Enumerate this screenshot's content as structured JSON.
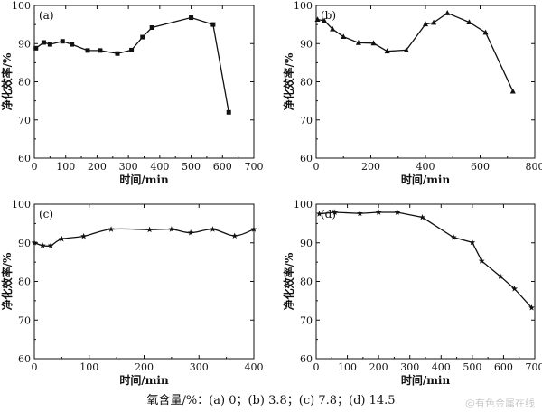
{
  "caption": {
    "label": "氧含量/%：",
    "items": [
      "(a) 0；",
      "(b) 3.8；",
      "(c) 7.8；",
      "(d) 14.5"
    ]
  },
  "watermark": "@有色金属在线",
  "chart_data": [
    {
      "type": "line",
      "panel_label": "(a)",
      "xlabel": "时间/min",
      "ylabel": "净化效率/%",
      "xlim": [
        0,
        700
      ],
      "ylim": [
        60,
        100
      ],
      "xticks": [
        0,
        100,
        200,
        300,
        400,
        500,
        600,
        700
      ],
      "yticks": [
        60,
        70,
        80,
        90,
        100
      ],
      "marker": "square",
      "smooth": false,
      "x": [
        5,
        30,
        50,
        90,
        120,
        170,
        210,
        265,
        310,
        345,
        375,
        500,
        570,
        620
      ],
      "y": [
        88.8,
        90.3,
        89.8,
        90.6,
        89.8,
        88.2,
        88.2,
        87.4,
        88.3,
        91.7,
        94.2,
        96.8,
        95.0,
        72.0
      ]
    },
    {
      "type": "line",
      "panel_label": "(b)",
      "xlabel": "时间/min",
      "ylabel": "净化效率/%",
      "xlim": [
        0,
        800
      ],
      "ylim": [
        60,
        100
      ],
      "xticks": [
        0,
        200,
        400,
        600,
        800
      ],
      "yticks": [
        60,
        70,
        80,
        90,
        100
      ],
      "marker": "triangle",
      "smooth": false,
      "x": [
        5,
        30,
        60,
        100,
        155,
        210,
        260,
        330,
        400,
        430,
        480,
        560,
        620,
        720
      ],
      "y": [
        96.3,
        96.0,
        93.8,
        91.8,
        90.2,
        90.1,
        88.0,
        88.3,
        95.1,
        95.5,
        98.0,
        95.6,
        92.9,
        77.5
      ]
    },
    {
      "type": "line",
      "panel_label": "(c)",
      "xlabel": "时间/min",
      "ylabel": "净化效率/%",
      "xlim": [
        0,
        400
      ],
      "ylim": [
        60,
        100
      ],
      "xticks": [
        0,
        100,
        200,
        300,
        400
      ],
      "yticks": [
        60,
        70,
        80,
        90,
        100
      ],
      "marker": "star",
      "smooth": true,
      "x": [
        0,
        15,
        30,
        50,
        90,
        140,
        210,
        250,
        285,
        325,
        365,
        400
      ],
      "y": [
        90.0,
        89.3,
        89.3,
        91.0,
        91.7,
        93.5,
        93.4,
        93.5,
        92.6,
        93.5,
        91.8,
        93.5
      ]
    },
    {
      "type": "line",
      "panel_label": "(d)",
      "xlabel": "时间/min",
      "ylabel": "净化效率/%",
      "xlim": [
        0,
        700
      ],
      "ylim": [
        60,
        100
      ],
      "xticks": [
        0,
        100,
        200,
        300,
        400,
        500,
        600,
        700
      ],
      "yticks": [
        60,
        70,
        80,
        90,
        100
      ],
      "marker": "star",
      "smooth": false,
      "x": [
        10,
        60,
        140,
        200,
        260,
        340,
        440,
        500,
        530,
        590,
        635,
        690
      ],
      "y": [
        97.5,
        97.9,
        97.6,
        97.9,
        97.9,
        96.6,
        91.4,
        90.1,
        85.3,
        81.3,
        78.1,
        73.2
      ]
    }
  ]
}
